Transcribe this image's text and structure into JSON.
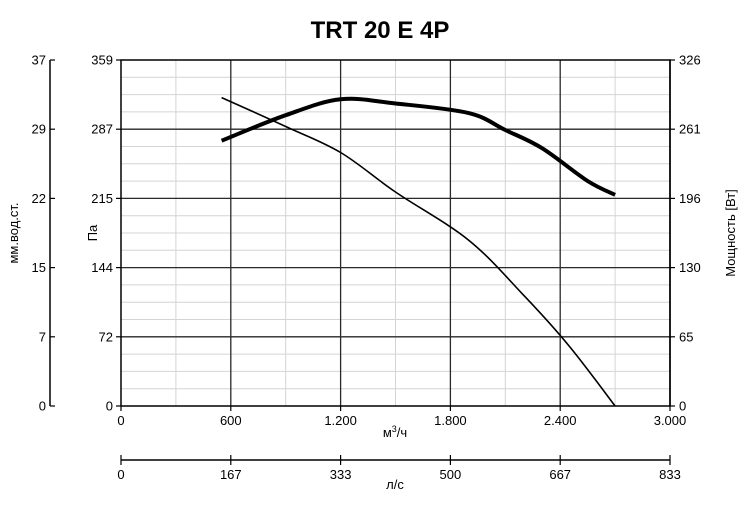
{
  "chart_data": {
    "type": "line",
    "title": "TRT 20 E 4P",
    "xlabel": "м³/ч",
    "xlabel_base": "м",
    "xlabel_sup": "3",
    "xlabel_tail": "/ч",
    "xlim": [
      0,
      3000
    ],
    "x_ticks": [
      "0",
      "600",
      "1.200",
      "1.800",
      "2.400",
      "3.000"
    ],
    "x_tick_values": [
      0,
      600,
      1200,
      1800,
      2400,
      3000
    ],
    "x2label": "л/с",
    "x2_ticks": [
      "0",
      "167",
      "333",
      "500",
      "667",
      "833"
    ],
    "ylabel_left": "Па",
    "ylim": [
      0,
      359
    ],
    "y_ticks": [
      "0",
      "72",
      "144",
      "215",
      "287",
      "359"
    ],
    "y_tick_values": [
      0,
      72,
      144,
      215,
      287,
      359
    ],
    "y_outer_label": "мм.вод.ст.",
    "y_outer_ticks": [
      "0",
      "7",
      "15",
      "22",
      "29",
      "37"
    ],
    "ylabel_right": "Мощность [Вт]",
    "y_right_lim": [
      0,
      326
    ],
    "y_right_ticks": [
      "0",
      "65",
      "130",
      "196",
      "261",
      "326"
    ],
    "grid": true,
    "series": [
      {
        "axis": "left",
        "color": "#000000",
        "width": 1.6,
        "x": [
          550,
          900,
          1200,
          1500,
          1900,
          2200,
          2450,
          2700
        ],
        "y": [
          320,
          290,
          263,
          222,
          172,
          115,
          62,
          0
        ]
      },
      {
        "axis": "right",
        "color": "#000000",
        "width": 4,
        "x": [
          550,
          900,
          1200,
          1500,
          1900,
          2100,
          2300,
          2550,
          2700
        ],
        "y": [
          250,
          274,
          289,
          285,
          276,
          260,
          243,
          212,
          199
        ]
      }
    ]
  }
}
